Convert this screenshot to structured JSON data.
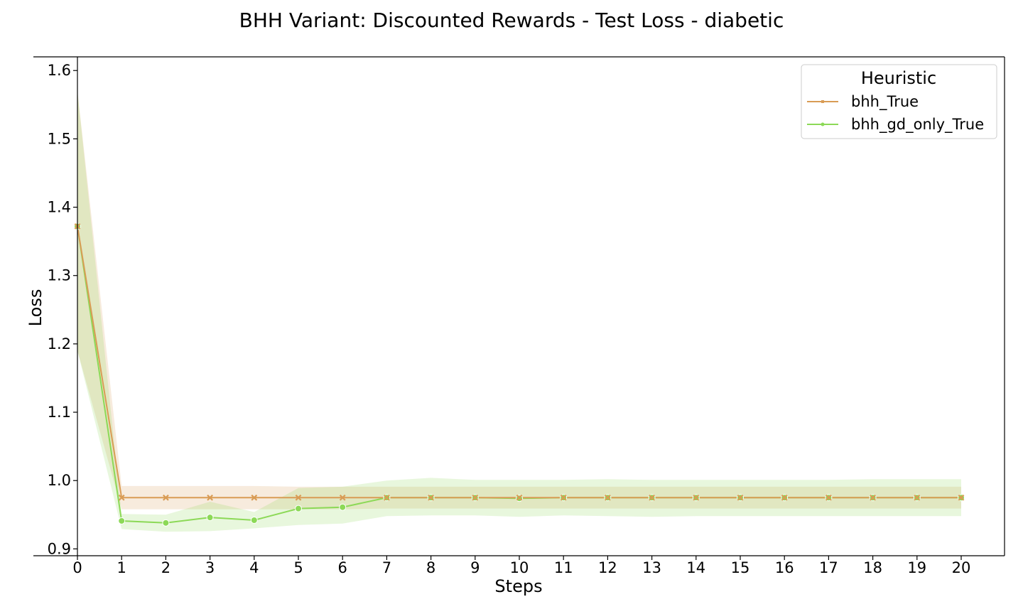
{
  "chart_data": {
    "type": "line",
    "title": "BHH Variant: Discounted Rewards - Test Loss - diabetic",
    "xlabel": "Steps",
    "ylabel": "Loss",
    "xlim": [
      0,
      20
    ],
    "ylim": [
      0.89,
      1.62
    ],
    "x_ticks": [
      0,
      1,
      2,
      3,
      4,
      5,
      6,
      7,
      8,
      9,
      10,
      11,
      12,
      13,
      14,
      15,
      16,
      17,
      18,
      19,
      20
    ],
    "y_ticks": [
      0.9,
      1.0,
      1.1,
      1.2,
      1.3,
      1.4,
      1.5,
      1.6
    ],
    "y_tick_labels": [
      "0.9",
      "1.0",
      "1.1",
      "1.2",
      "1.3",
      "1.4",
      "1.5",
      "1.6"
    ],
    "grid": false,
    "legend": {
      "title": "Heuristic",
      "placement": "top-right"
    },
    "x": [
      0,
      1,
      2,
      3,
      4,
      5,
      6,
      7,
      8,
      9,
      10,
      11,
      12,
      13,
      14,
      15,
      16,
      17,
      18,
      19,
      20
    ],
    "series": [
      {
        "name": "bhh_True",
        "color": "#d99c55",
        "marker": "x",
        "values": [
          1.372,
          0.975,
          0.975,
          0.975,
          0.975,
          0.975,
          0.975,
          0.975,
          0.975,
          0.975,
          0.975,
          0.975,
          0.975,
          0.975,
          0.975,
          0.975,
          0.975,
          0.975,
          0.975,
          0.975,
          0.975
        ],
        "ci_low": [
          1.19,
          0.958,
          0.958,
          0.958,
          0.958,
          0.958,
          0.958,
          0.959,
          0.959,
          0.959,
          0.959,
          0.959,
          0.959,
          0.959,
          0.959,
          0.959,
          0.959,
          0.959,
          0.959,
          0.959,
          0.959
        ],
        "ci_high": [
          1.57,
          0.992,
          0.992,
          0.992,
          0.992,
          0.991,
          0.991,
          0.991,
          0.991,
          0.991,
          0.991,
          0.991,
          0.991,
          0.991,
          0.991,
          0.991,
          0.991,
          0.991,
          0.991,
          0.991,
          0.991
        ]
      },
      {
        "name": "bhh_gd_only_True",
        "color": "#8cd957",
        "marker": "o",
        "values": [
          1.372,
          0.941,
          0.938,
          0.946,
          0.942,
          0.959,
          0.961,
          0.975,
          0.975,
          0.975,
          0.974,
          0.975,
          0.975,
          0.975,
          0.975,
          0.975,
          0.975,
          0.975,
          0.975,
          0.975,
          0.975
        ],
        "ci_low": [
          1.19,
          0.929,
          0.925,
          0.926,
          0.93,
          0.935,
          0.937,
          0.948,
          0.949,
          0.949,
          0.947,
          0.949,
          0.948,
          0.947,
          0.948,
          0.948,
          0.948,
          0.948,
          0.948,
          0.948,
          0.948
        ],
        "ci_high": [
          1.57,
          0.951,
          0.95,
          0.969,
          0.954,
          0.989,
          0.991,
          1.0,
          1.004,
          1.001,
          1.001,
          1.001,
          1.002,
          1.001,
          1.001,
          1.001,
          1.001,
          1.001,
          1.002,
          1.002,
          1.002
        ]
      }
    ]
  }
}
